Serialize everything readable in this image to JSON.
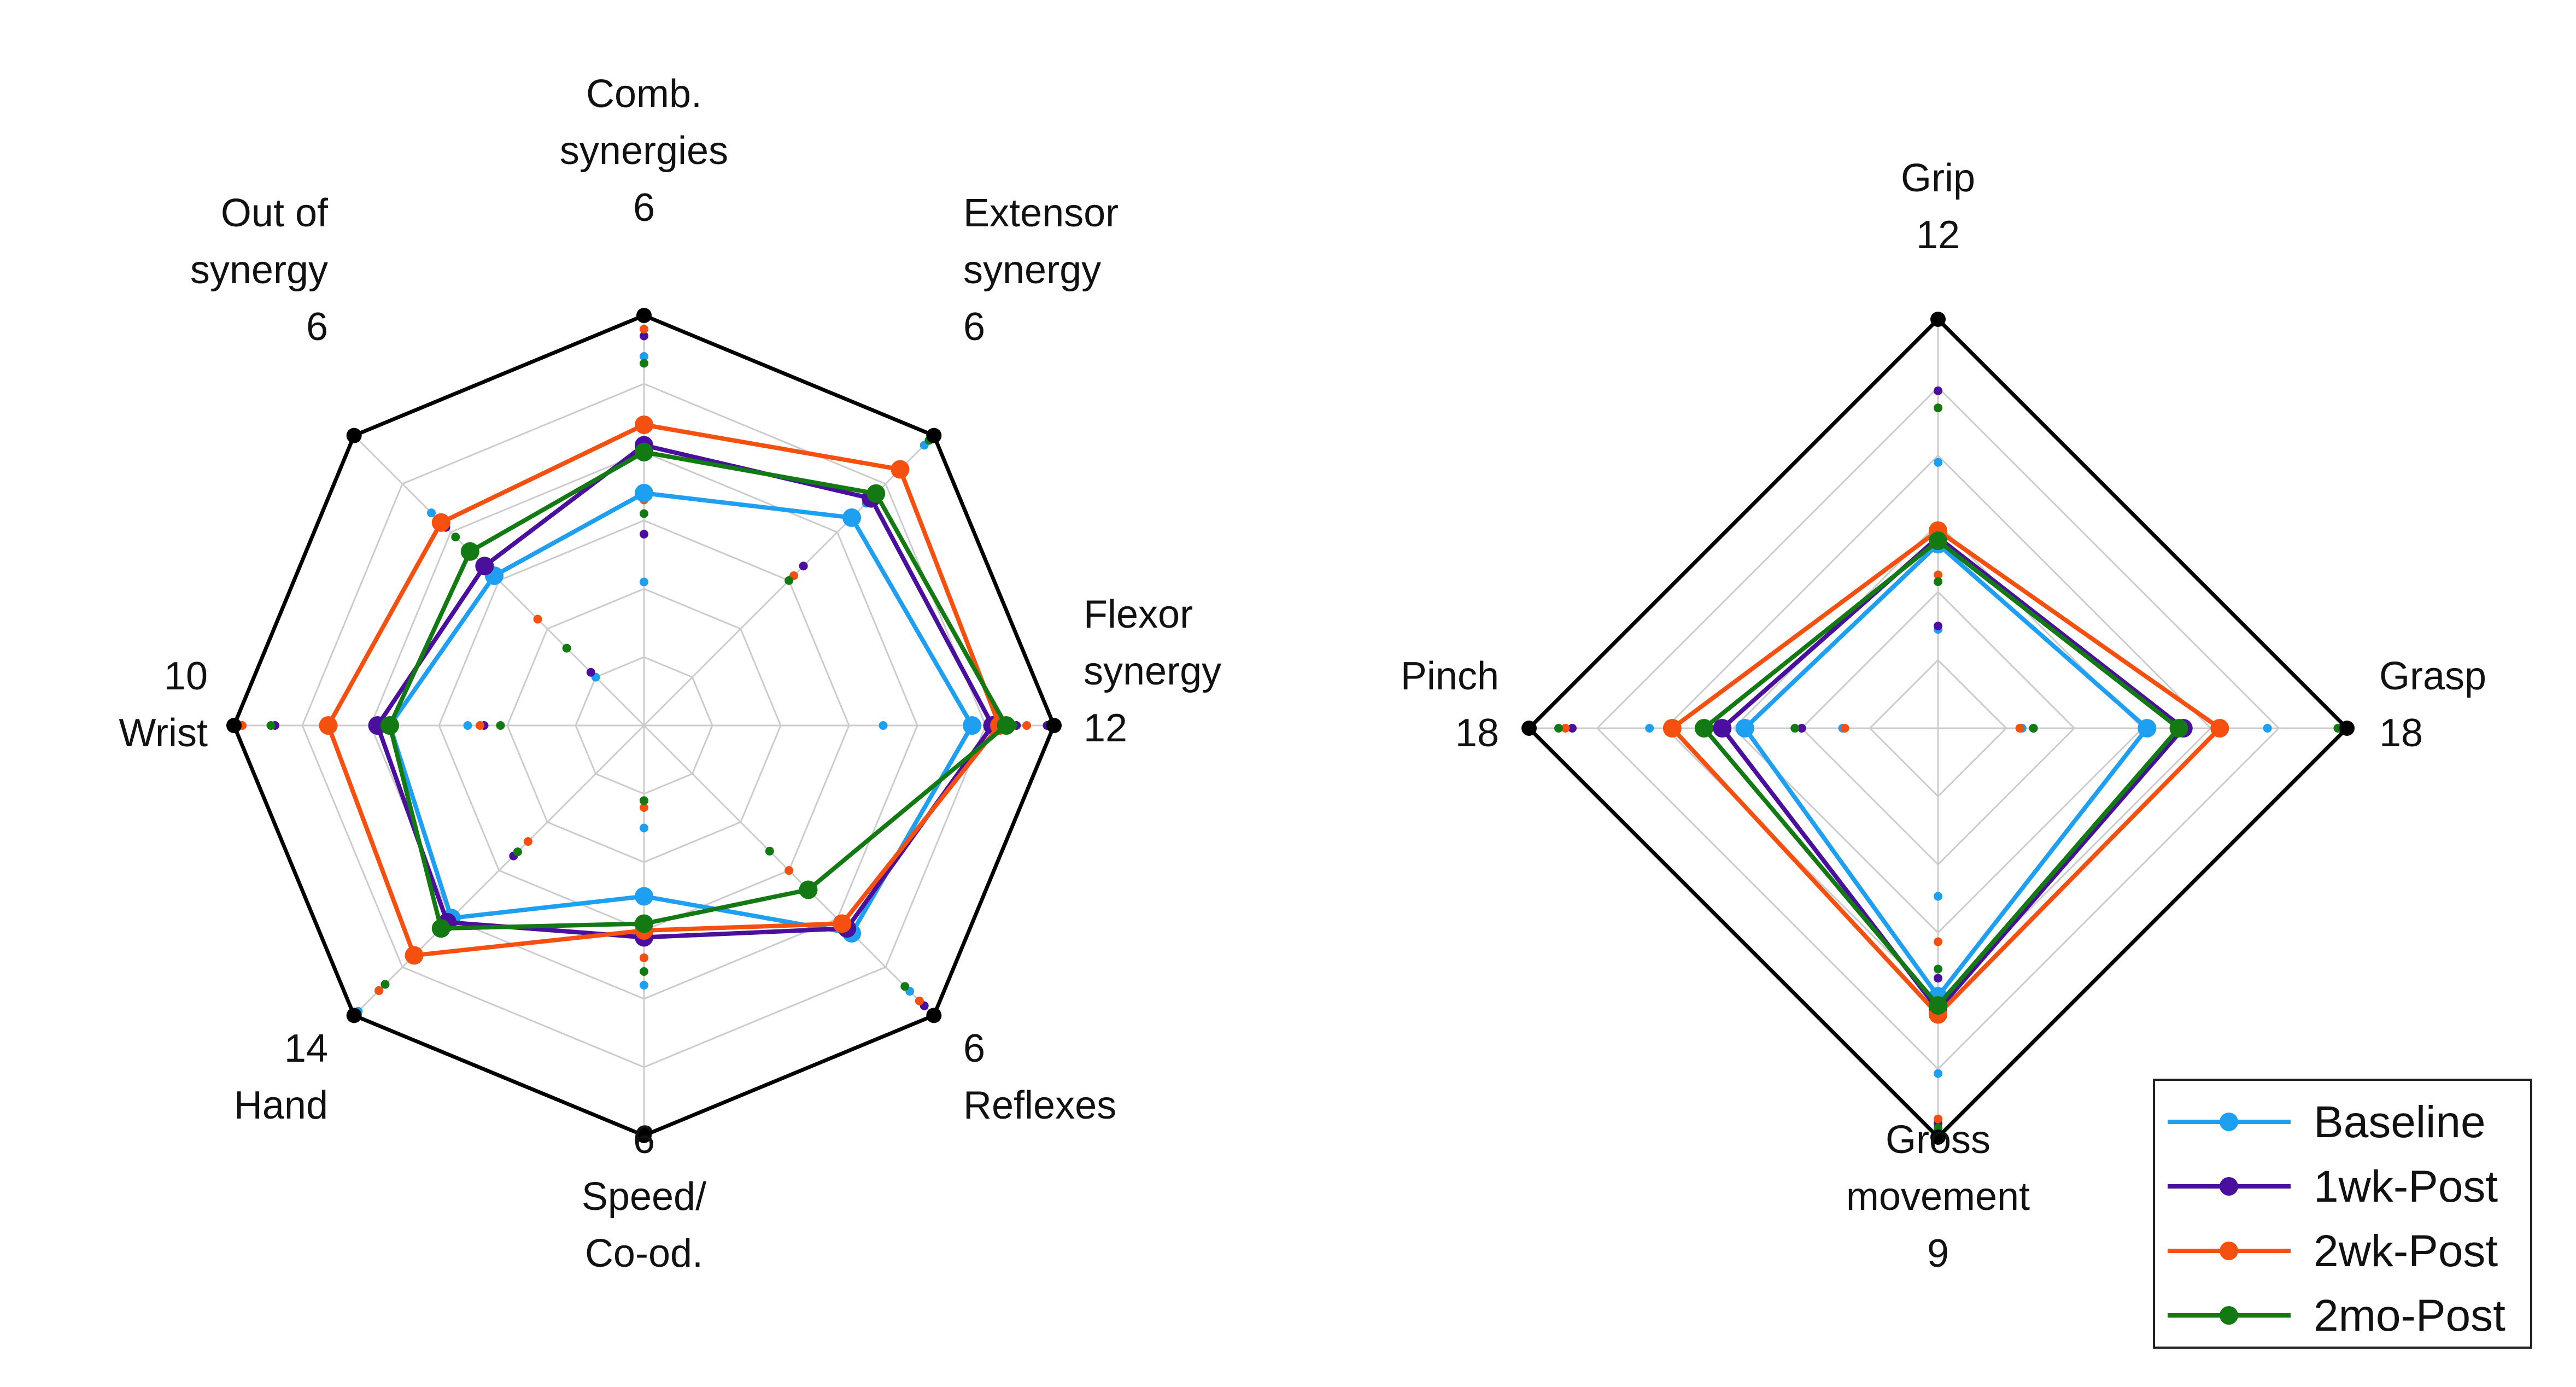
{
  "colors": {
    "Baseline": "#1e9ff2",
    "1wk-Post": "#4b0f9e",
    "2wk-Post": "#f5500f",
    "2mo-Post": "#137a13",
    "grid": "#cccccc",
    "frame": "#000000"
  },
  "legend": {
    "entries": [
      "Baseline",
      "1wk-Post",
      "2wk-Post",
      "2mo-Post"
    ]
  },
  "chart_data": [
    {
      "type": "radar",
      "axes": [
        {
          "label_lines": [
            "Comb.",
            "synergies",
            "6"
          ],
          "max": 6
        },
        {
          "label_lines": [
            "Extensor",
            "synergy",
            "6"
          ],
          "max": 6
        },
        {
          "label_lines": [
            "Flexor",
            "synergy",
            "12"
          ],
          "max": 12
        },
        {
          "label_lines": [
            "6",
            "Reflexes"
          ],
          "max": 6
        },
        {
          "label_lines": [
            "6",
            "Speed/",
            "Co-od."
          ],
          "max": 6
        },
        {
          "label_lines": [
            "14",
            "Hand"
          ],
          "max": 14
        },
        {
          "label_lines": [
            "10",
            "Wrist"
          ],
          "max": 10
        },
        {
          "label_lines": [
            "Out of",
            "synergy",
            "6"
          ],
          "max": 6
        }
      ],
      "grid_levels": 6,
      "series": [
        {
          "name": "Baseline",
          "values": [
            3.4,
            4.3,
            9.6,
            4.3,
            2.5,
            9.3,
            6.2,
            3.1
          ]
        },
        {
          "name": "1wk-Post",
          "values": [
            4.1,
            4.7,
            10.2,
            4.2,
            3.1,
            9.5,
            6.5,
            3.3
          ]
        },
        {
          "name": "2wk-Post",
          "values": [
            4.4,
            5.3,
            10.4,
            4.1,
            3.0,
            11.1,
            7.7,
            4.2
          ]
        },
        {
          "name": "2mo-Post",
          "values": [
            4.0,
            4.8,
            10.6,
            3.4,
            2.9,
            9.8,
            6.2,
            3.6
          ]
        }
      ],
      "error_markers": [
        {
          "series": "Baseline",
          "values": [
            [
              2.1,
              5.4
            ],
            [
              4.6,
              5.8
            ],
            [
              7.0,
              11.8
            ],
            [
              5.5,
              5.8
            ],
            [
              1.5,
              3.8
            ],
            [
              12.5,
              13.8
            ],
            [
              4.3,
              9.8
            ],
            [
              1.0,
              4.4
            ]
          ]
        },
        {
          "series": "1wk-Post",
          "values": [
            [
              2.8,
              5.7
            ],
            [
              3.3,
              5.9
            ],
            [
              10.9,
              11.8
            ],
            [
              4.3,
              5.8
            ],
            [
              1.1,
              3.4
            ],
            [
              6.3,
              12.8
            ],
            [
              3.9,
              9.0
            ],
            [
              1.1,
              4.1
            ]
          ]
        },
        {
          "series": "2wk-Post",
          "values": [
            [
              3.3,
              5.8
            ],
            [
              3.1,
              5.9
            ],
            [
              11.2,
              11.9
            ],
            [
              3.0,
              5.7
            ],
            [
              1.2,
              3.4
            ],
            [
              5.6,
              12.8
            ],
            [
              4.0,
              9.8
            ],
            [
              2.2,
              4.2
            ]
          ]
        },
        {
          "series": "2mo-Post",
          "values": [
            [
              3.1,
              5.3
            ],
            [
              3.0,
              5.9
            ],
            [
              10.8,
              11.9
            ],
            [
              2.6,
              5.4
            ],
            [
              1.1,
              3.6
            ],
            [
              6.1,
              12.5
            ],
            [
              3.5,
              9.1
            ],
            [
              1.6,
              3.9
            ]
          ]
        }
      ]
    },
    {
      "type": "radar",
      "axes": [
        {
          "label_lines": [
            "Grip",
            "12"
          ],
          "max": 12
        },
        {
          "label_lines": [
            "Grasp",
            "18"
          ],
          "max": 18
        },
        {
          "label_lines": [
            "Gross",
            "movement",
            "9"
          ],
          "max": 9
        },
        {
          "label_lines": [
            "Pinch",
            "18"
          ],
          "max": 18
        }
      ],
      "grid_levels": 6,
      "series": [
        {
          "name": "Baseline",
          "values": [
            5.4,
            9.2,
            5.9,
            8.5
          ]
        },
        {
          "name": "1wk-Post",
          "values": [
            5.6,
            10.8,
            6.2,
            9.5
          ]
        },
        {
          "name": "2wk-Post",
          "values": [
            5.8,
            12.4,
            6.3,
            11.7
          ]
        },
        {
          "name": "2mo-Post",
          "values": [
            5.5,
            10.6,
            6.1,
            10.3
          ]
        }
      ],
      "error_markers": [
        {
          "series": "Baseline",
          "values": [
            [
              2.9,
              7.8
            ],
            [
              3.7,
              14.5
            ],
            [
              3.7,
              7.6
            ],
            [
              4.2,
              12.7
            ]
          ]
        },
        {
          "series": "1wk-Post",
          "values": [
            [
              3.0,
              9.9
            ],
            [
              4.2,
              17.7
            ],
            [
              5.5,
              8.7
            ],
            [
              6.0,
              16.1
            ]
          ]
        },
        {
          "series": "2wk-Post",
          "values": [
            [
              4.5,
              9.4
            ],
            [
              3.6,
              17.9
            ],
            [
              4.7,
              8.6
            ],
            [
              4.1,
              16.4
            ]
          ]
        },
        {
          "series": "2mo-Post",
          "values": [
            [
              4.3,
              9.4
            ],
            [
              4.2,
              17.6
            ],
            [
              5.3,
              8.8
            ],
            [
              6.3,
              16.7
            ]
          ]
        }
      ]
    }
  ]
}
